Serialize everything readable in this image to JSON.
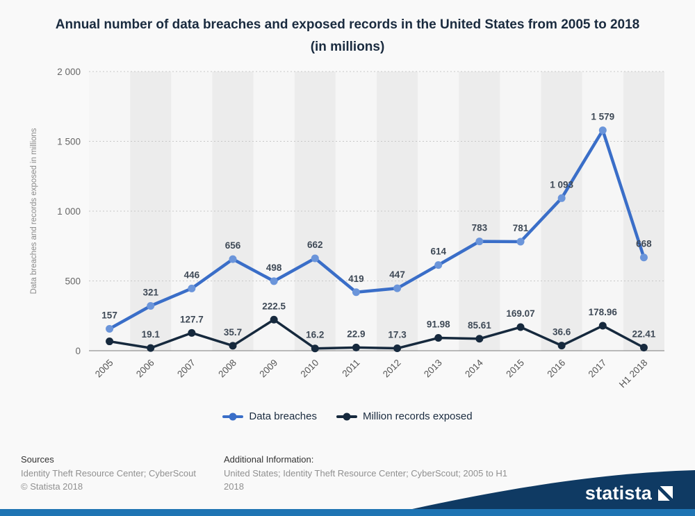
{
  "title": "Annual number of data breaches and exposed records in the United States from 2005 to 2018 (in millions)",
  "y_axis": {
    "label": "Data breaches and records exposed in millions",
    "ticks": [
      {
        "value": 0,
        "label": "0"
      },
      {
        "value": 500,
        "label": "500"
      },
      {
        "value": 1000,
        "label": "1 000"
      },
      {
        "value": 1500,
        "label": "1 500"
      },
      {
        "value": 2000,
        "label": "2 000"
      }
    ]
  },
  "chart_data": {
    "type": "line",
    "categories": [
      "2005",
      "2006",
      "2007",
      "2008",
      "2009",
      "2010",
      "2011",
      "2012",
      "2013",
      "2014",
      "2015",
      "2016",
      "2017",
      "H1 2018"
    ],
    "series": [
      {
        "name": "Data breaches",
        "color": "#3a6ec8",
        "marker_color": "#6b95da",
        "values": [
          157,
          321,
          446,
          656,
          498,
          662,
          419,
          447,
          614,
          783,
          781,
          1093,
          1579,
          668
        ],
        "labels": [
          "157",
          "321",
          "446",
          "656",
          "498",
          "662",
          "419",
          "447",
          "614",
          "783",
          "781",
          "1 093",
          "1 579",
          "668"
        ]
      },
      {
        "name": "Million records exposed",
        "color": "#16293d",
        "marker_color": "#16293d",
        "values": [
          66.9,
          19.1,
          127.7,
          35.7,
          222.5,
          16.2,
          22.9,
          17.3,
          91.98,
          85.61,
          169.07,
          36.6,
          178.96,
          22.41
        ],
        "labels": [
          "",
          "19.1",
          "127.7",
          "35.7",
          "222.5",
          "16.2",
          "22.9",
          "17.3",
          "91.98",
          "85.61",
          "169.07",
          "36.6",
          "178.96",
          "22.41"
        ]
      }
    ],
    "ylim": [
      0,
      2000
    ],
    "grid": true,
    "legend_position": "bottom",
    "label_color": "#3e4956"
  },
  "footer": {
    "sources_heading": "Sources",
    "sources_line": "Identity Theft Resource Center; CyberScout",
    "copyright": "© Statista 2018",
    "additional_heading": "Additional Information:",
    "additional_line": "United States; Identity Theft Resource Center; CyberScout; 2005 to H1 2018",
    "brand": "statista"
  }
}
